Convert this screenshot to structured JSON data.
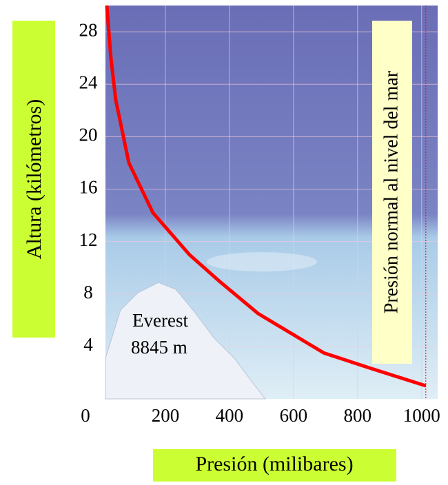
{
  "chart_data": {
    "type": "line",
    "xlabel": "Presión (milibares)",
    "ylabel": "Altura (kilómetros)",
    "annotations": [
      "Everest",
      "8845 m",
      "Presión normal al nivel del mar"
    ],
    "x": [
      17,
      30,
      45,
      86,
      161,
      275,
      372,
      490,
      695,
      845,
      1013
    ],
    "values": [
      30,
      26,
      22.8,
      18,
      14.2,
      11,
      8.9,
      6.5,
      3.5,
      2.3,
      1
    ],
    "color": "#ff0000",
    "xlim": [
      0,
      1050
    ],
    "ylim": [
      0,
      30
    ],
    "xticks": [
      0,
      200,
      400,
      600,
      800,
      1000
    ],
    "yticks": [
      4,
      8,
      12,
      16,
      20,
      24,
      28
    ],
    "grid": true
  }
}
